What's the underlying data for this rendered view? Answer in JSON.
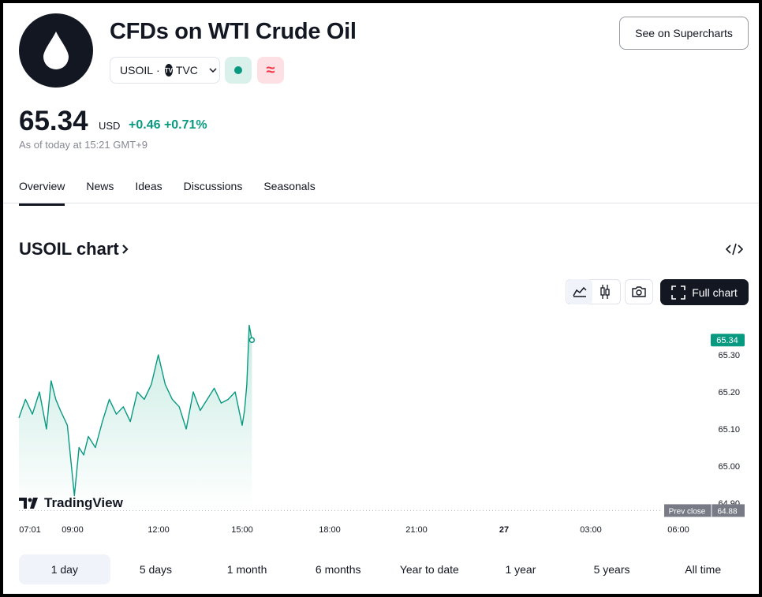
{
  "header": {
    "title": "CFDs on WTI Crude Oil",
    "symbol": "USOIL",
    "separator": "·",
    "exchange": "TVC",
    "exchange_logo_text": "TV",
    "badge_cfd_glyph": "≈",
    "supercharts_label": "See on Supercharts"
  },
  "quote": {
    "price": "65.34",
    "currency": "USD",
    "change": "+0.46",
    "change_percent": "+0.71%",
    "as_of": "As of today at 15:21 GMT+9"
  },
  "tabs": [
    {
      "label": "Overview",
      "active": true
    },
    {
      "label": "News"
    },
    {
      "label": "Ideas"
    },
    {
      "label": "Discussions"
    },
    {
      "label": "Seasonals"
    }
  ],
  "chart_section": {
    "title": "USOIL chart",
    "full_chart_label": "Full chart",
    "watermark": "TradingView",
    "colors": {
      "line": "#089981",
      "area_top": "#c8ebe2",
      "area_bottom": "#ffffff",
      "label_bg": "#089981"
    }
  },
  "icons": {
    "logo": "oil-drop-icon",
    "embed": "code-embed-icon",
    "area_chart": "area-chart-icon",
    "candles": "candles-icon",
    "camera": "camera-icon",
    "fullscreen": "fullscreen-icon"
  },
  "chart_data": {
    "type": "area",
    "x_ticks": [
      "07:01",
      "09:00",
      "12:00",
      "15:00",
      "18:00",
      "21:00",
      "27",
      "03:00",
      "06:00"
    ],
    "y_ticks": [
      "65.30",
      "65.20",
      "65.10",
      "65.00",
      "64.90"
    ],
    "ylim": [
      64.88,
      65.4
    ],
    "last_price_label": "65.34",
    "prev_close_label": "Prev close",
    "prev_close_value": "64.88",
    "series": [
      {
        "x": [
          "07:01",
          "07:15",
          "07:30",
          "07:45",
          "08:00",
          "08:10",
          "08:20",
          "08:30",
          "08:45",
          "09:00",
          "09:10",
          "09:20",
          "09:30",
          "09:45",
          "10:00",
          "10:15",
          "10:30",
          "10:45",
          "11:00",
          "11:15",
          "11:30",
          "11:45",
          "12:00",
          "12:15",
          "12:30",
          "12:45",
          "13:00",
          "13:15",
          "13:30",
          "13:45",
          "14:00",
          "14:15",
          "14:30",
          "14:45",
          "15:00",
          "15:05",
          "15:10",
          "15:15",
          "15:21"
        ],
        "values": [
          65.13,
          65.18,
          65.14,
          65.2,
          65.1,
          65.23,
          65.18,
          65.15,
          65.11,
          64.92,
          65.05,
          65.03,
          65.08,
          65.05,
          65.12,
          65.18,
          65.14,
          65.16,
          65.12,
          65.2,
          65.18,
          65.22,
          65.3,
          65.22,
          65.18,
          65.16,
          65.1,
          65.2,
          65.15,
          65.18,
          65.21,
          65.17,
          65.18,
          65.2,
          65.11,
          65.15,
          65.22,
          65.38,
          65.34
        ]
      }
    ]
  },
  "time_ranges": [
    {
      "label": "1 day",
      "active": true
    },
    {
      "label": "5 days"
    },
    {
      "label": "1 month"
    },
    {
      "label": "6 months"
    },
    {
      "label": "Year to date"
    },
    {
      "label": "1 year"
    },
    {
      "label": "5 years"
    },
    {
      "label": "All time"
    }
  ]
}
